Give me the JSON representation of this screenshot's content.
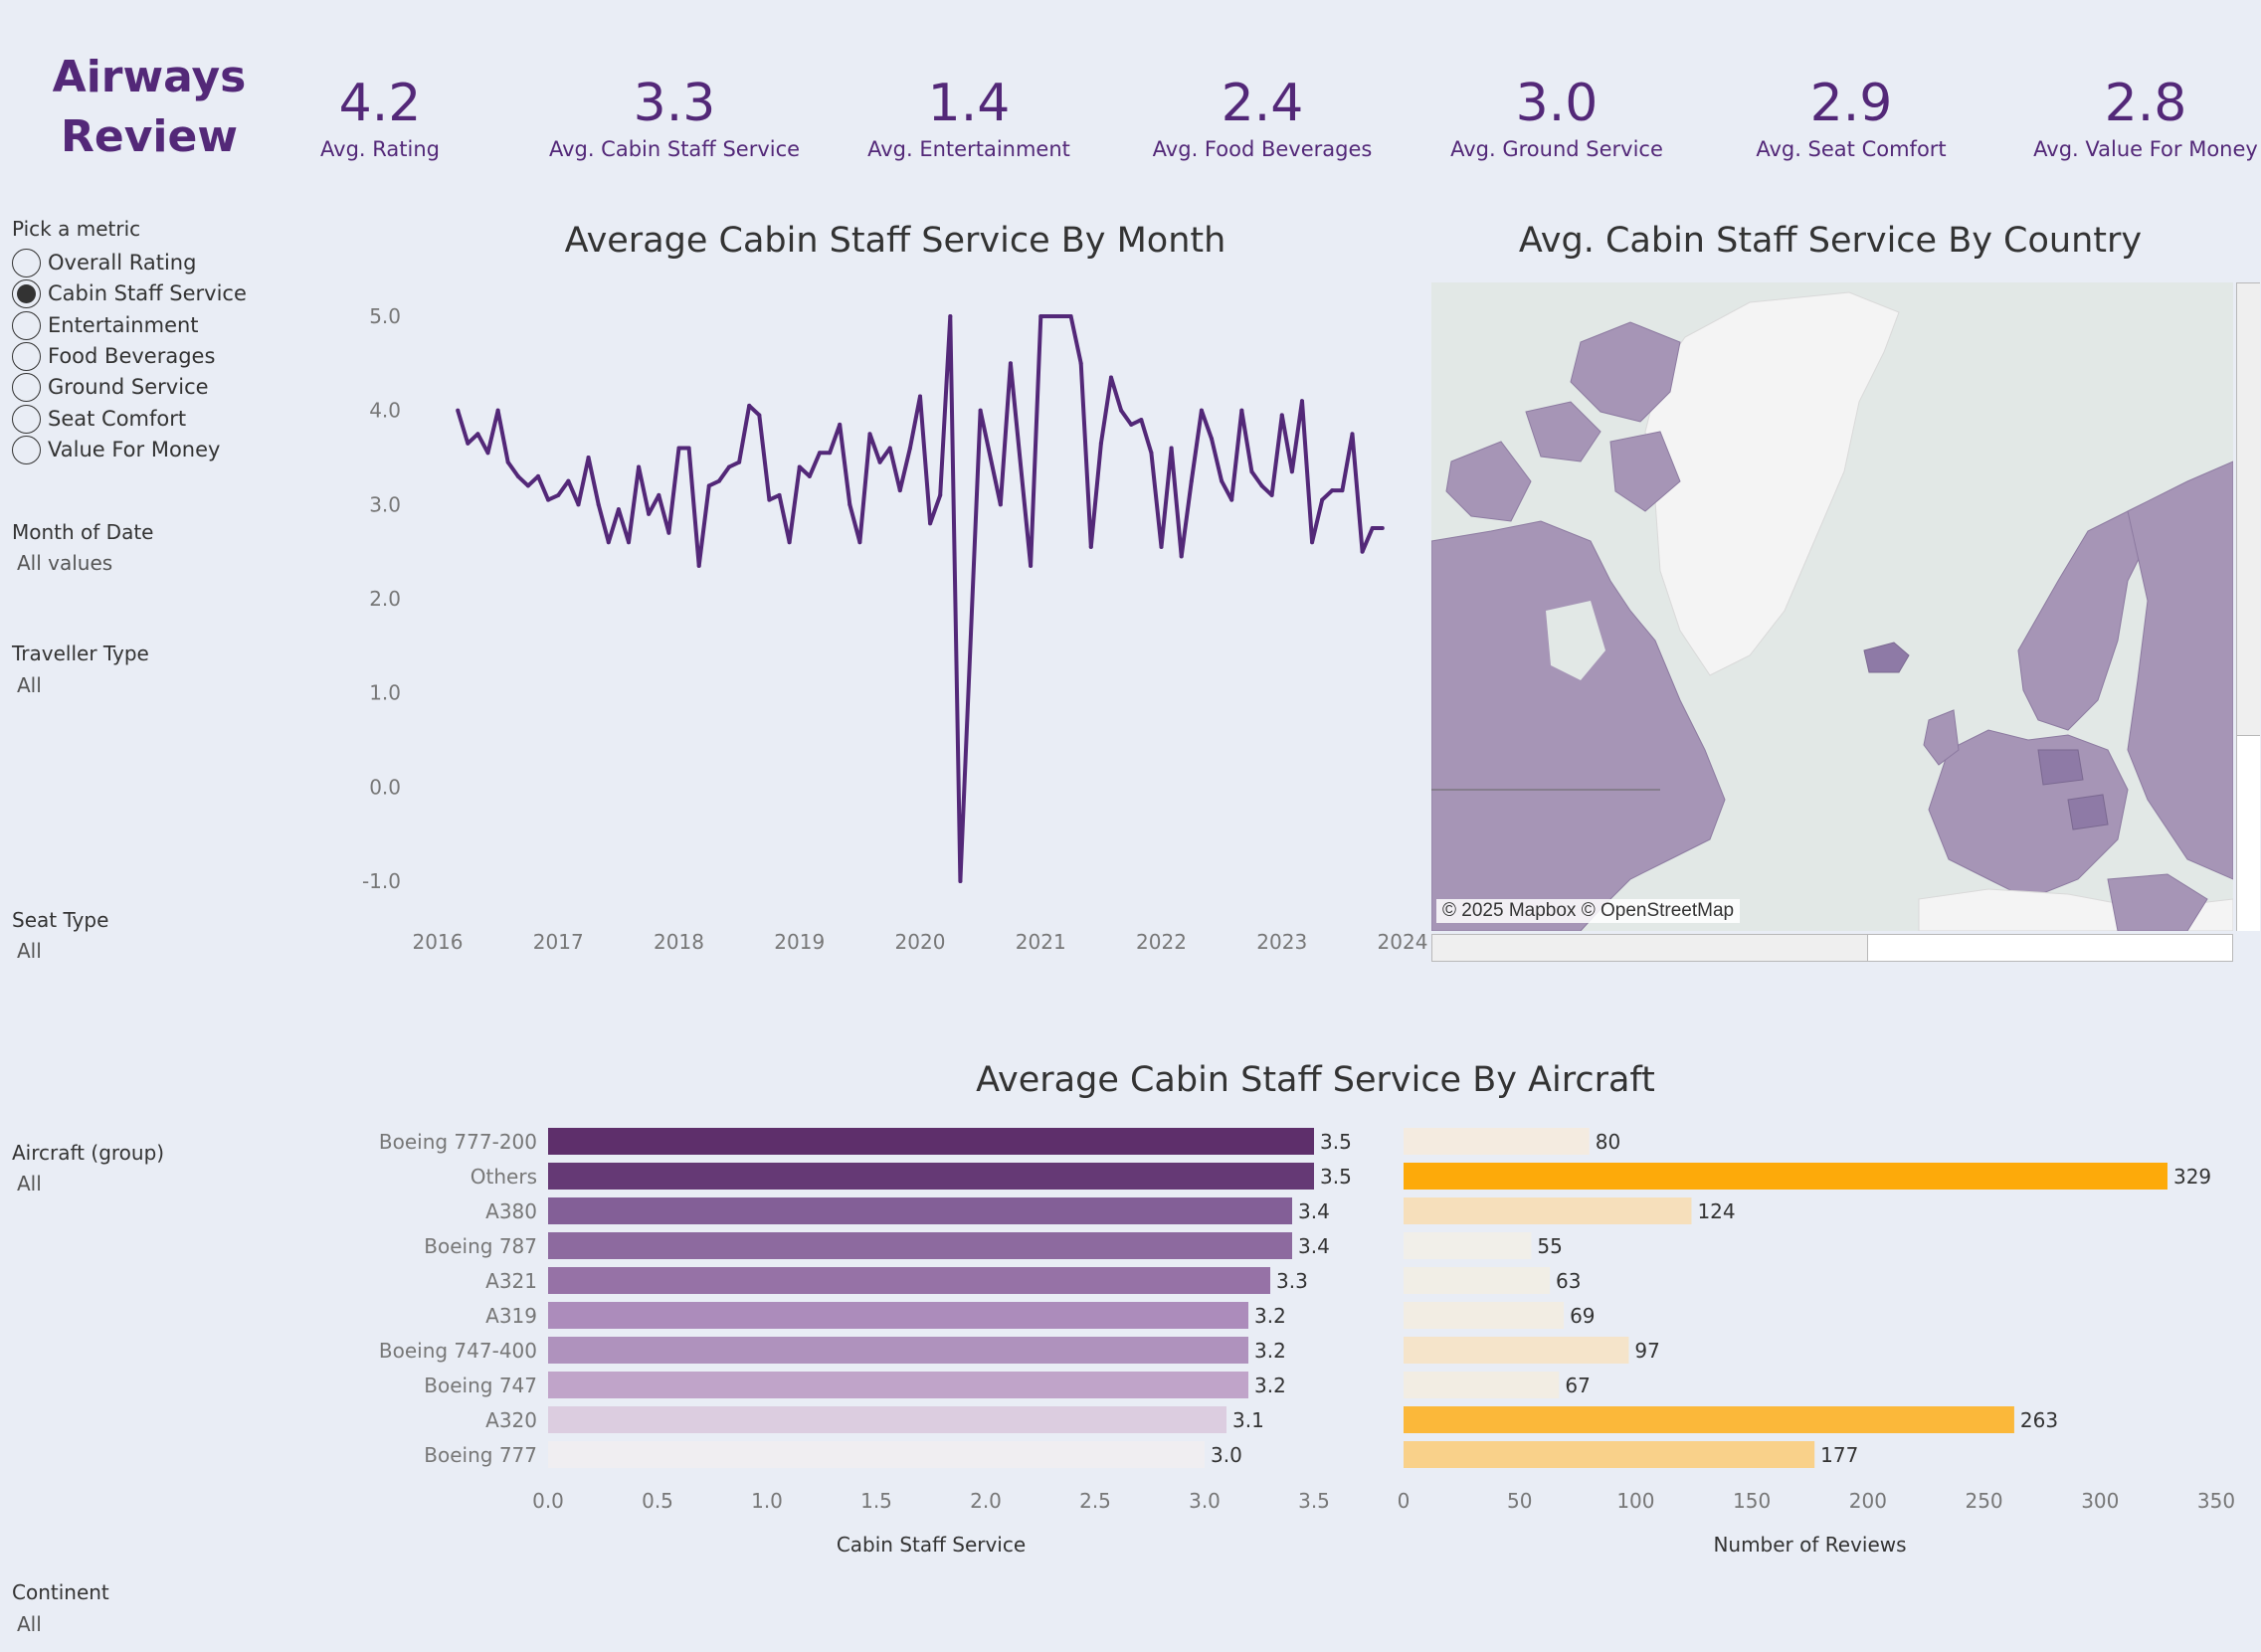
{
  "header": {
    "title_line1": "Airways",
    "title_line2": "Review"
  },
  "kpis": [
    {
      "value": "4.2",
      "label": "Avg. Rating"
    },
    {
      "value": "3.3",
      "label": "Avg. Cabin Staff Service"
    },
    {
      "value": "1.4",
      "label": "Avg. Entertainment"
    },
    {
      "value": "2.4",
      "label": "Avg. Food Beverages"
    },
    {
      "value": "3.0",
      "label": "Avg. Ground Service"
    },
    {
      "value": "2.9",
      "label": "Avg. Seat Comfort"
    },
    {
      "value": "2.8",
      "label": "Avg. Value For Money"
    }
  ],
  "filters": {
    "metric": {
      "label": "Pick a metric",
      "selected": 1,
      "options": [
        "Overall Rating",
        "Cabin Staff Service",
        "Entertainment",
        "Food Beverages",
        "Ground Service",
        "Seat Comfort",
        "Value For Money"
      ]
    },
    "month": {
      "label": "Month of Date",
      "value": "All values"
    },
    "traveller": {
      "label": "Traveller Type",
      "value": "All"
    },
    "seat": {
      "label": "Seat Type",
      "value": "All"
    },
    "aircraft": {
      "label": "Aircraft (group)",
      "value": "All"
    },
    "continent": {
      "label": "Continent",
      "value": "All"
    }
  },
  "map": {
    "title": "Avg. Cabin Staff Service By Country",
    "attribution": "© 2025 Mapbox © OpenStreetMap",
    "colors": {
      "water": "#e2e8e6",
      "land": "#f4f4f4",
      "country_fill": "#a695b6",
      "country_dark": "#8e7aa6"
    }
  },
  "chart_data": [
    {
      "type": "line",
      "title": "Average Cabin Staff Service By Month",
      "xlabel": "",
      "ylabel": "",
      "x_ticks": [
        "2016",
        "2017",
        "2018",
        "2019",
        "2020",
        "2021",
        "2022",
        "2023",
        "2024"
      ],
      "y_ticks": [
        "5.0",
        "4.0",
        "3.0",
        "2.0",
        "1.0",
        "0.0",
        "-1.0"
      ],
      "ylim": [
        -1,
        5
      ],
      "xlim": [
        "2016-01",
        "2024-01"
      ],
      "grid": false,
      "color": "#532878",
      "series": [
        {
          "x": [
            "2016-03",
            "2016-04",
            "2016-05",
            "2016-06",
            "2016-07",
            "2016-08",
            "2016-09",
            "2016-10",
            "2016-11",
            "2016-12",
            "2017-01",
            "2017-02",
            "2017-03",
            "2017-04",
            "2017-05",
            "2017-06",
            "2017-07",
            "2017-08",
            "2017-09",
            "2017-10",
            "2017-11",
            "2017-12",
            "2018-01",
            "2018-02",
            "2018-03",
            "2018-04",
            "2018-05",
            "2018-06",
            "2018-07",
            "2018-08",
            "2018-09",
            "2018-10",
            "2018-11",
            "2018-12",
            "2019-01",
            "2019-02",
            "2019-03",
            "2019-04",
            "2019-05",
            "2019-06",
            "2019-07",
            "2019-08",
            "2019-09",
            "2019-10",
            "2019-11",
            "2019-12",
            "2020-01",
            "2020-02",
            "2020-03",
            "2020-04",
            "2020-05",
            "2020-07",
            "2020-09",
            "2020-10",
            "2020-12",
            "2021-01",
            "2021-03",
            "2021-04",
            "2021-05",
            "2021-06",
            "2021-07",
            "2021-08",
            "2021-09",
            "2021-10",
            "2021-11",
            "2021-12",
            "2022-01",
            "2022-02",
            "2022-03",
            "2022-04",
            "2022-05",
            "2022-06",
            "2022-07",
            "2022-08",
            "2022-09",
            "2022-10",
            "2022-11",
            "2022-12",
            "2023-01",
            "2023-02",
            "2023-03",
            "2023-04",
            "2023-05",
            "2023-06",
            "2023-07",
            "2023-08",
            "2023-09",
            "2023-10",
            "2023-11"
          ],
          "values": [
            4.0,
            3.65,
            3.75,
            3.55,
            4.0,
            3.45,
            3.3,
            3.2,
            3.3,
            3.05,
            3.1,
            3.25,
            3.0,
            3.5,
            3.0,
            2.6,
            2.95,
            2.6,
            3.4,
            2.9,
            3.1,
            2.7,
            3.6,
            3.6,
            2.35,
            3.2,
            3.25,
            3.4,
            3.45,
            4.05,
            3.95,
            3.05,
            3.1,
            2.6,
            3.4,
            3.3,
            3.55,
            3.55,
            3.85,
            3.0,
            2.6,
            3.75,
            3.45,
            3.6,
            3.15,
            3.6,
            4.15,
            2.8,
            3.1,
            5.0,
            -1.0,
            4.0,
            3.0,
            4.5,
            2.35,
            5.0,
            5.0,
            5.0,
            4.5,
            2.55,
            3.65,
            4.35,
            4.0,
            3.85,
            3.9,
            3.55,
            2.55,
            3.6,
            2.45,
            3.25,
            4.0,
            3.7,
            3.25,
            3.05,
            4.0,
            3.35,
            3.2,
            3.1,
            3.95,
            3.35,
            4.1,
            2.6,
            3.05,
            3.15,
            3.15,
            3.75,
            2.5,
            2.75,
            2.75
          ]
        }
      ]
    },
    {
      "type": "bar",
      "orientation": "horizontal",
      "title": "Average Cabin Staff Service By Aircraft",
      "categories": [
        "Boeing 777-200",
        "Others",
        "A380",
        "Boeing 787",
        "A321",
        "A319",
        "Boeing 747-400",
        "Boeing 747",
        "A320",
        "Boeing 777"
      ],
      "values": [
        3.5,
        3.5,
        3.4,
        3.4,
        3.3,
        3.2,
        3.2,
        3.2,
        3.1,
        3.0
      ],
      "xlabel": "Cabin Staff Service",
      "xlim": [
        0,
        3.5
      ],
      "x_ticks": [
        "0.0",
        "0.5",
        "1.0",
        "1.5",
        "2.0",
        "2.5",
        "3.0",
        "3.5"
      ],
      "colors": [
        "#5e2f6b",
        "#653975",
        "#835f97",
        "#8d6a9f",
        "#9672a6",
        "#ac8cbb",
        "#af92bd",
        "#c0a4c9",
        "#dccde0",
        "#f0eef1"
      ]
    },
    {
      "type": "bar",
      "orientation": "horizontal",
      "title": "",
      "categories": [
        "Boeing 777-200",
        "Others",
        "A380",
        "Boeing 787",
        "A321",
        "A319",
        "Boeing 747-400",
        "Boeing 747",
        "A320",
        "Boeing 777"
      ],
      "values": [
        80,
        329,
        124,
        55,
        63,
        69,
        97,
        67,
        263,
        177
      ],
      "xlabel": "Number of Reviews",
      "xlim": [
        0,
        350
      ],
      "x_ticks": [
        "0",
        "50",
        "100",
        "150",
        "200",
        "250",
        "300",
        "350"
      ],
      "colors": [
        "#f4ebe0",
        "#fdaa0a",
        "#f6dfbb",
        "#f1efe9",
        "#f1eee6",
        "#f2ede3",
        "#f5e4ca",
        "#f2ede3",
        "#fbb83a",
        "#f9d18a"
      ]
    }
  ]
}
